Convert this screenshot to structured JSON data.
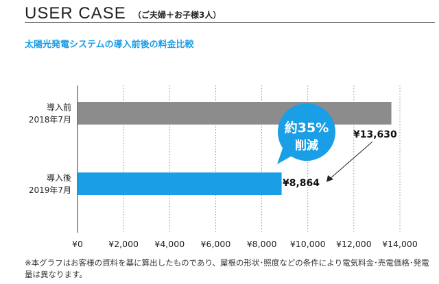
{
  "header": {
    "title": "USER CASE",
    "subtitle": "（ご夫婦＋お子様3人）"
  },
  "chart_data": {
    "type": "bar",
    "orientation": "horizontal",
    "title": "太陽光発電システムの導入前後の料金比較",
    "categories": [
      {
        "line1": "導入前",
        "line2": "2018年7月"
      },
      {
        "line1": "導入後",
        "line2": "2019年7月"
      }
    ],
    "values": [
      13630,
      8864
    ],
    "value_labels": [
      "¥13,630",
      "¥8,864"
    ],
    "colors": [
      "#8c8c8c",
      "#1a9ee5"
    ],
    "xlim": [
      0,
      14000
    ],
    "ticks": [
      0,
      2000,
      4000,
      6000,
      8000,
      10000,
      12000,
      14000
    ],
    "tick_labels": [
      "¥0",
      "¥2,000",
      "¥4,000",
      "¥6,000",
      "¥8,000",
      "¥10,000",
      "¥12,000",
      "¥14,000"
    ],
    "grid": true,
    "callout": {
      "line1": "約35%",
      "line2": "削減",
      "color": "#1a9ee5"
    }
  },
  "footnote": "※本グラフはお客様の資料を基に算出したものであり、屋根の形状･照度などの条件により電気料金･売電価格･発電量は異なります。"
}
